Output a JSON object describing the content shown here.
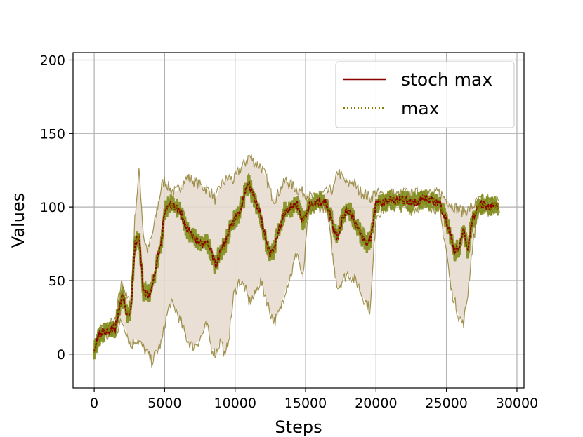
{
  "chart_data": {
    "type": "line",
    "title": "",
    "xlabel": "Steps",
    "ylabel": "Values",
    "xlim": [
      -1500,
      30500
    ],
    "ylim": [
      -23,
      205
    ],
    "xticks": [
      0,
      5000,
      10000,
      15000,
      20000,
      25000,
      30000
    ],
    "xtick_labels": [
      "0",
      "5000",
      "10000",
      "15000",
      "20000",
      "25000",
      "30000"
    ],
    "yticks": [
      0,
      50,
      100,
      150,
      200
    ],
    "ytick_labels": [
      "0",
      "50",
      "100",
      "150",
      "200"
    ],
    "grid": true,
    "legend": {
      "placement": "top-right"
    },
    "band": {
      "x": [
        0,
        250,
        500,
        1000,
        1500,
        1800,
        2000,
        2300,
        2600,
        2900,
        3200,
        3500,
        3800,
        4100,
        4500,
        4800,
        5000,
        5400,
        5800,
        6200,
        6600,
        7000,
        7500,
        8000,
        8300,
        8600,
        9000,
        9300,
        9600,
        9900,
        10300,
        10700,
        11000,
        11400,
        11800,
        12200,
        12500,
        12800,
        13200,
        13600,
        14000,
        14400,
        14800,
        15200,
        15600,
        16000,
        16500,
        17000,
        17300,
        17600,
        18000,
        18300,
        18700,
        19000,
        19300,
        19600,
        20000,
        20500,
        21000,
        21500,
        22000,
        22500,
        23000,
        23500,
        24000,
        24500,
        25000,
        25300,
        25600,
        25900,
        26200,
        26500,
        26800,
        27200,
        27600,
        28000,
        28500,
        28700
      ],
      "lower": [
        0,
        5,
        10,
        12,
        14,
        20,
        22,
        15,
        5,
        10,
        8,
        4,
        0,
        -5,
        3,
        8,
        20,
        35,
        30,
        20,
        10,
        5,
        10,
        20,
        5,
        0,
        10,
        -3,
        15,
        40,
        50,
        45,
        35,
        40,
        50,
        38,
        28,
        22,
        30,
        45,
        55,
        70,
        50,
        95,
        98,
        100,
        100,
        60,
        45,
        50,
        55,
        52,
        48,
        40,
        35,
        30,
        95,
        98,
        100,
        100,
        100,
        98,
        100,
        102,
        100,
        98,
        70,
        45,
        35,
        25,
        20,
        40,
        70,
        95,
        98,
        97,
        98,
        97
      ],
      "upper": [
        5,
        15,
        18,
        20,
        22,
        42,
        50,
        38,
        35,
        95,
        125,
        80,
        70,
        80,
        100,
        115,
        118,
        112,
        110,
        115,
        120,
        118,
        115,
        112,
        110,
        105,
        115,
        118,
        120,
        118,
        125,
        130,
        135,
        130,
        128,
        120,
        110,
        105,
        112,
        118,
        115,
        112,
        110,
        108,
        106,
        108,
        110,
        112,
        125,
        120,
        115,
        118,
        112,
        110,
        108,
        106,
        110,
        108,
        110,
        108,
        110,
        108,
        110,
        112,
        108,
        110,
        105,
        102,
        100,
        98,
        97,
        98,
        100,
        104,
        105,
        104,
        105,
        103
      ]
    },
    "series": [
      {
        "name": "stoch max",
        "color": "#8b0000",
        "style": "solid",
        "x": [
          0,
          250,
          500,
          1000,
          1500,
          1800,
          2000,
          2300,
          2600,
          2900,
          3200,
          3500,
          3800,
          4100,
          4500,
          4800,
          5000,
          5400,
          5800,
          6200,
          6600,
          7000,
          7500,
          8000,
          8300,
          8600,
          9000,
          9300,
          9600,
          9900,
          10300,
          10700,
          11000,
          11400,
          11800,
          12200,
          12500,
          12800,
          13200,
          13600,
          14000,
          14400,
          14800,
          15200,
          15600,
          16000,
          16500,
          17000,
          17300,
          17600,
          18000,
          18300,
          18700,
          19000,
          19300,
          19600,
          20000,
          20500,
          21000,
          21500,
          22000,
          22500,
          23000,
          23500,
          24000,
          24500,
          25000,
          25300,
          25600,
          25900,
          26200,
          26500,
          26800,
          27200,
          27600,
          28000,
          28500,
          28700
        ],
        "values": [
          2,
          10,
          14,
          16,
          18,
          32,
          40,
          28,
          30,
          75,
          80,
          42,
          40,
          45,
          65,
          78,
          98,
          102,
          100,
          95,
          85,
          80,
          75,
          75,
          70,
          60,
          70,
          75,
          85,
          90,
          95,
          110,
          115,
          105,
          95,
          75,
          68,
          72,
          88,
          98,
          100,
          102,
          90,
          100,
          102,
          104,
          103,
          85,
          80,
          92,
          98,
          95,
          85,
          80,
          75,
          78,
          102,
          103,
          105,
          104,
          105,
          103,
          104,
          106,
          104,
          103,
          90,
          80,
          70,
          72,
          85,
          70,
          90,
          100,
          102,
          100,
          101,
          100
        ]
      },
      {
        "name": "max",
        "color": "#808000",
        "style": "dotted",
        "x": [
          0,
          250,
          500,
          1000,
          1500,
          1800,
          2000,
          2300,
          2600,
          2900,
          3200,
          3500,
          3800,
          4100,
          4500,
          4800,
          5000,
          5400,
          5800,
          6200,
          6600,
          7000,
          7500,
          8000,
          8300,
          8600,
          9000,
          9300,
          9600,
          9900,
          10300,
          10700,
          11000,
          11400,
          11800,
          12200,
          12500,
          12800,
          13200,
          13600,
          14000,
          14400,
          14800,
          15200,
          15600,
          16000,
          16500,
          17000,
          17300,
          17600,
          18000,
          18300,
          18700,
          19000,
          19300,
          19600,
          20000,
          20500,
          21000,
          21500,
          22000,
          22500,
          23000,
          23500,
          24000,
          24500,
          25000,
          25300,
          25600,
          25900,
          26200,
          26500,
          26800,
          27200,
          27600,
          28000,
          28500,
          28700
        ],
        "values": [
          2,
          10,
          14,
          16,
          18,
          32,
          40,
          28,
          30,
          75,
          80,
          42,
          40,
          45,
          65,
          78,
          98,
          102,
          100,
          95,
          85,
          80,
          75,
          75,
          70,
          60,
          70,
          75,
          85,
          90,
          95,
          110,
          115,
          105,
          95,
          75,
          68,
          72,
          88,
          98,
          100,
          102,
          90,
          100,
          102,
          104,
          103,
          85,
          80,
          92,
          98,
          95,
          85,
          80,
          75,
          78,
          102,
          103,
          105,
          104,
          105,
          103,
          104,
          106,
          104,
          103,
          90,
          80,
          70,
          72,
          85,
          70,
          90,
          100,
          102,
          100,
          101,
          100
        ]
      }
    ],
    "colors": {
      "band_fill": "#e8dccf",
      "band_edge": "#8b7a2a",
      "detail": "#7a8a10"
    }
  }
}
